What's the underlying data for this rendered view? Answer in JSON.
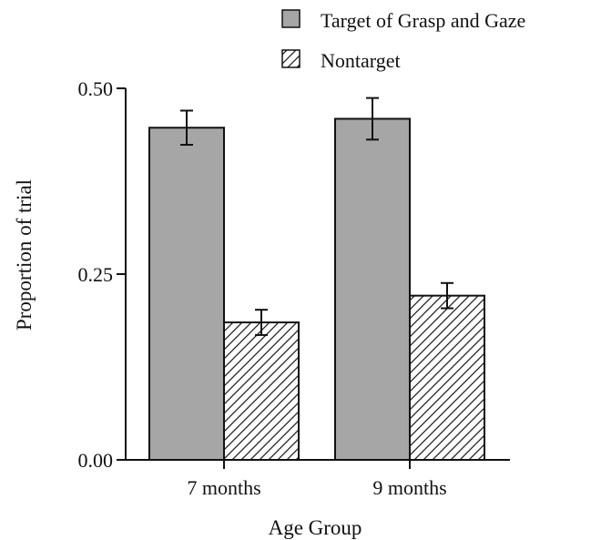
{
  "chart_data": {
    "type": "bar",
    "title": "",
    "xlabel": "Age Group",
    "ylabel": "Proportion of trial",
    "categories": [
      "7 months",
      "9 months"
    ],
    "ylim": [
      0,
      0.5
    ],
    "yticks": [
      0,
      0.25,
      0.5
    ],
    "ytick_labels": [
      "0.00",
      "0.25",
      "0.50"
    ],
    "grid": false,
    "legend_position": "top-right",
    "series": [
      {
        "name": "Target of Grasp and Gaze",
        "values": [
          0.447,
          0.459
        ],
        "error": [
          0.023,
          0.028
        ],
        "fill": "#a6a6a6",
        "pattern": "solid"
      },
      {
        "name": "Nontarget",
        "values": [
          0.185,
          0.221
        ],
        "error": [
          0.017,
          0.017
        ],
        "fill": "#ffffff",
        "pattern": "diagonal-hatch"
      }
    ]
  }
}
